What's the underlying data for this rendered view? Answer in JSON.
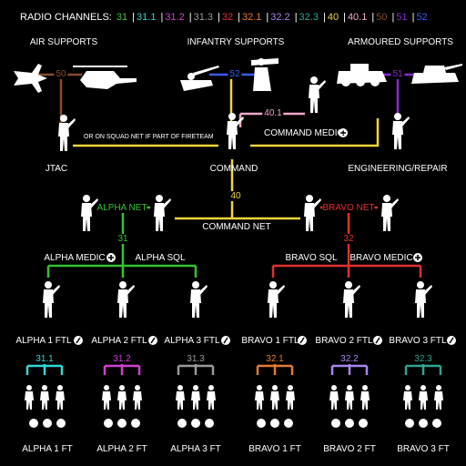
{
  "legend": {
    "prefix": "RADIO CHANNELS:",
    "channels": [
      {
        "label": "31",
        "color": "#34c234"
      },
      {
        "label": "31.1",
        "color": "#33d6d6"
      },
      {
        "label": "31.2",
        "color": "#d23fd2"
      },
      {
        "label": "31.3",
        "color": "#9a9a9a"
      },
      {
        "label": "32",
        "color": "#e03030"
      },
      {
        "label": "32.1",
        "color": "#e57a2e"
      },
      {
        "label": "32.2",
        "color": "#a986ee"
      },
      {
        "label": "32.3",
        "color": "#2ea58f"
      },
      {
        "label": "40",
        "color": "#f2d53a"
      },
      {
        "label": "40.1",
        "color": "#f0a8c8"
      },
      {
        "label": "50",
        "color": "#8a4a2a"
      },
      {
        "label": "51",
        "color": "#8a2ad2"
      },
      {
        "label": "52",
        "color": "#3a5cf0"
      }
    ]
  },
  "labels": {
    "air": "AIR SUPPORTS",
    "infantry": "INFANTRY SUPPORTS",
    "armoured": "ARMOURED SUPPORTS",
    "squadnet": "OR ON SQUAD NET IF PART OF FIRETEAM",
    "jtac": "JTAC",
    "command": "COMMAND",
    "cmd_medic": "COMMAND MEDIC",
    "engineering": "ENGINEERING/REPAIR",
    "alpha_net": "ALPHA NET",
    "bravo_net": "BRAVO NET",
    "command_net": "COMMAND NET",
    "alpha_medic": "ALPHA MEDIC",
    "alpha_sql": "ALPHA SQL",
    "bravo_sql": "BRAVO SQL",
    "bravo_medic": "BRAVO MEDIC",
    "a1ftl": "ALPHA 1 FTL",
    "a2ftl": "ALPHA 2 FTL",
    "a3ftl": "ALPHA 3 FTL",
    "b1ftl": "BRAVO 1 FTL",
    "b2ftl": "BRAVO 2 FTL",
    "b3ftl": "BRAVO 3 FTL",
    "a1ft": "ALPHA 1 FT",
    "a2ft": "ALPHA 2 FT",
    "a3ft": "ALPHA 3 FT",
    "b1ft": "BRAVO 1 FT",
    "b2ft": "BRAVO 2 FT",
    "b3ft": "BRAVO 3 FT"
  },
  "channels_on_lines": {
    "air": "50",
    "infantry": "52",
    "medic": "40.1",
    "armoured": "51",
    "command": "40",
    "alpha": "31",
    "bravo": "32",
    "a1": "31.1",
    "a2": "31.2",
    "a3": "31.3",
    "b1": "32.1",
    "b2": "32.2",
    "b3": "32.3"
  },
  "icons": {
    "medic": "medic-cross-icon",
    "ftl": "ftl-slash-icon",
    "role_badges": [
      "rifleman-icon",
      "ammo-icon",
      "grenadier-icon",
      "mg-icon"
    ]
  }
}
